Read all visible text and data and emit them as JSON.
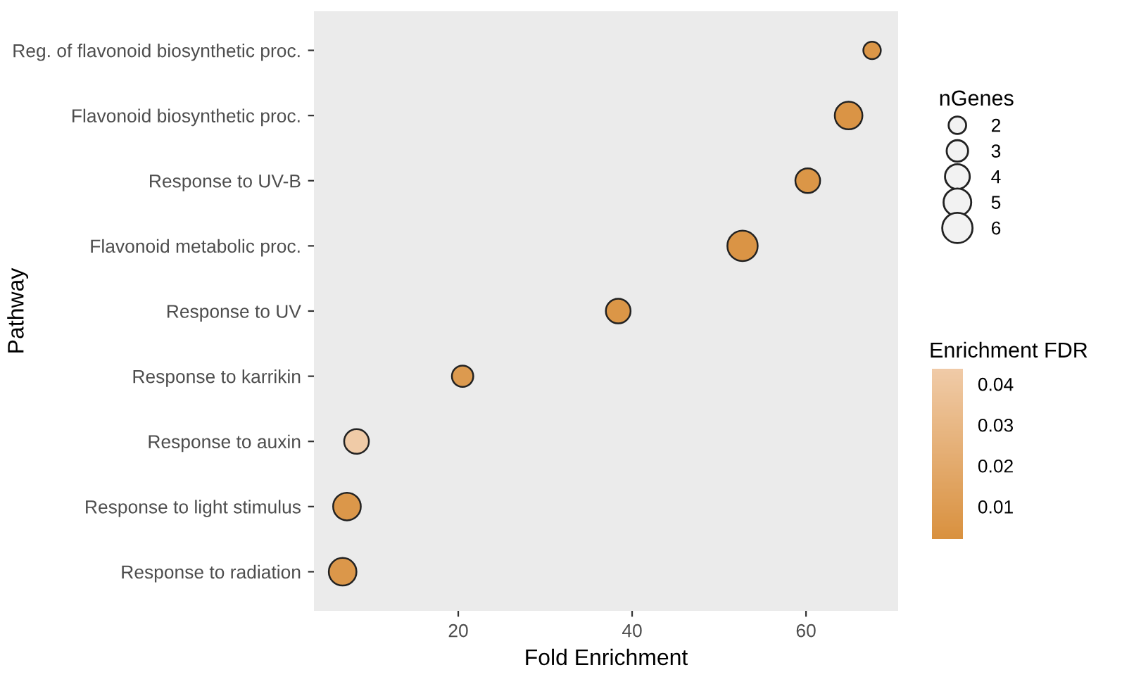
{
  "chart_data": {
    "type": "bubble",
    "xlabel": "Fold Enrichment",
    "ylabel": "Pathway",
    "categories": [
      "Reg. of flavonoid biosynthetic proc.",
      "Flavonoid biosynthetic proc.",
      "Response to UV-B",
      "Flavonoid metabolic proc.",
      "Response to UV",
      "Response to karrikin",
      "Response to auxin",
      "Response to light stimulus",
      "Response to radiation"
    ],
    "values": [
      67.6,
      64.9,
      60.2,
      52.7,
      38.4,
      20.5,
      8.3,
      7.2,
      6.7
    ],
    "sizes": [
      2,
      5,
      4,
      6,
      4,
      3,
      4,
      5,
      5
    ],
    "size_legend": [
      2,
      3,
      4,
      5,
      6
    ],
    "legend_title": "nGenes",
    "cvalues": [
      0.005,
      0.004,
      0.005,
      0.004,
      0.005,
      0.008,
      0.043,
      0.006,
      0.006
    ],
    "clabel": "Enrichment FDR",
    "clim": [
      0.0017,
      0.0434
    ],
    "cticks": [
      0.01,
      0.02,
      0.03,
      0.04
    ],
    "orientation": "horizontal",
    "xlim": [
      3.4,
      70.6
    ],
    "xticks": [
      20,
      40,
      60
    ],
    "grid": false
  }
}
